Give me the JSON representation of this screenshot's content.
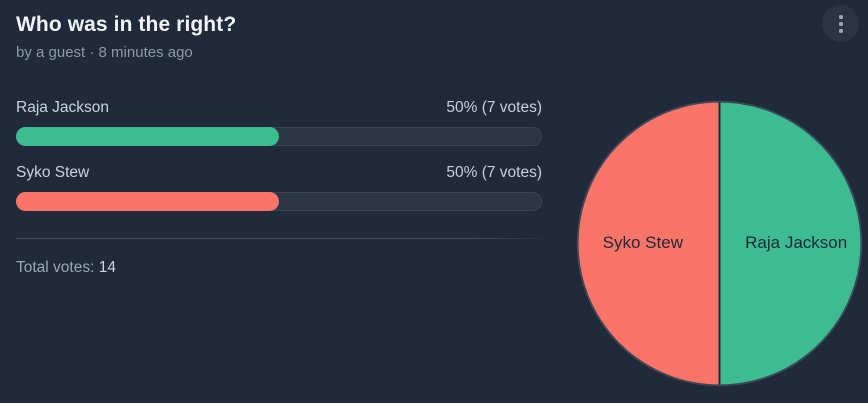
{
  "poll": {
    "title": "Who was in the right?",
    "byline": "by a guest · 8 minutes ago",
    "total_votes_label": "Total votes:",
    "total_votes_value": "14",
    "options": [
      {
        "label": "Raja Jackson",
        "result": "50% (7 votes)",
        "percent": 50,
        "votes": 7,
        "color": "#3DBC92"
      },
      {
        "label": "Syko Stew",
        "result": "50% (7 votes)",
        "percent": 50,
        "votes": 7,
        "color": "#FA7568"
      }
    ]
  },
  "menu": {
    "icon": "kebab-menu"
  },
  "colors": {
    "background": "#212A3A",
    "bar_track": "#2B3546",
    "green": "#3DBC92",
    "salmon": "#FA7568",
    "title_text": "#F0F4F8",
    "muted_text": "#8C99AA"
  },
  "chart_data": [
    {
      "type": "bar",
      "orientation": "horizontal",
      "title": "Who was in the right?",
      "categories": [
        "Raja Jackson",
        "Syko Stew"
      ],
      "values": [
        50,
        50
      ],
      "value_unit": "percent",
      "votes": [
        7,
        7
      ],
      "total_votes": 14,
      "colors": [
        "#3DBC92",
        "#FA7568"
      ],
      "xlim": [
        0,
        100
      ]
    },
    {
      "type": "pie",
      "labels": [
        "Raja Jackson",
        "Syko Stew"
      ],
      "values": [
        50,
        50
      ],
      "colors": [
        "#3DBC92",
        "#FA7568"
      ],
      "start_angle": "top",
      "direction": "clockwise",
      "labels_inside": true
    }
  ]
}
